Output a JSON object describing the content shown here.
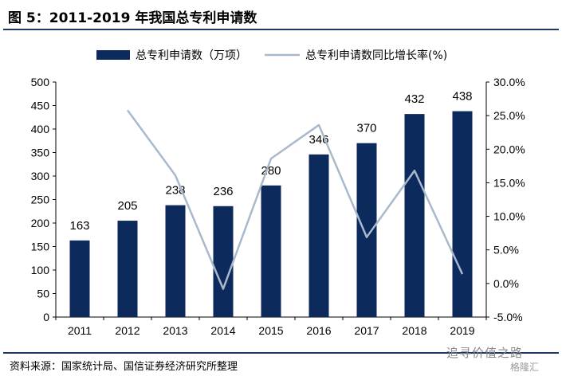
{
  "header": {
    "title": "图 5：2011-2019 年我国总专利申请数"
  },
  "footer": {
    "source": "资料来源：国家统计局、国信证券经济研究所整理",
    "watermark": "追寻价值之路",
    "watermark_sub": "格隆汇"
  },
  "chart_data": {
    "type": "bar",
    "categories": [
      "2011",
      "2012",
      "2013",
      "2014",
      "2015",
      "2016",
      "2017",
      "2018",
      "2019"
    ],
    "series": [
      {
        "name": "总专利申请数（万项）",
        "type": "bar",
        "axis": "left",
        "color": "#0d2a5c",
        "values": [
          163,
          205,
          238,
          236,
          280,
          346,
          370,
          432,
          438
        ]
      },
      {
        "name": "总专利申请数同比增长率(%)",
        "type": "line",
        "axis": "right",
        "color": "#a9b9cc",
        "values": [
          null,
          25.8,
          16.1,
          -0.8,
          18.6,
          23.6,
          6.9,
          16.8,
          1.4
        ]
      }
    ],
    "y_left": {
      "min": 0,
      "max": 500,
      "step": 50,
      "ticks": [
        "0",
        "50",
        "100",
        "150",
        "200",
        "250",
        "300",
        "350",
        "400",
        "450",
        "500"
      ]
    },
    "y_right": {
      "min": -5,
      "max": 30,
      "step": 5,
      "ticks": [
        "-5.0%",
        "0.0%",
        "5.0%",
        "10.0%",
        "15.0%",
        "20.0%",
        "25.0%",
        "30.0%"
      ]
    },
    "data_labels": [
      "163",
      "205",
      "238",
      "236",
      "280",
      "346",
      "370",
      "432",
      "438"
    ],
    "legend": "top",
    "grid": false
  }
}
